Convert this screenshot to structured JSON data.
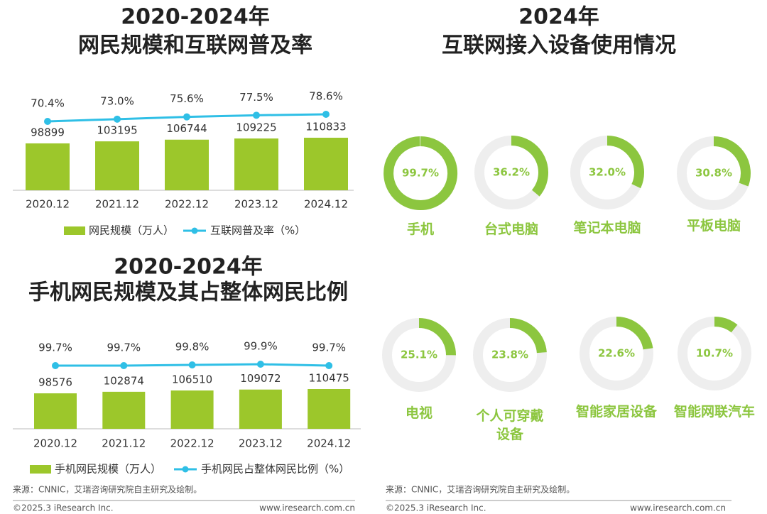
{
  "chart_data": [
    {
      "type": "bar",
      "title_lines": [
        "2020-2024年",
        "网民规模和互联网普及率"
      ],
      "categories": [
        "2020.12",
        "2021.12",
        "2022.12",
        "2023.12",
        "2024.12"
      ],
      "series": [
        {
          "name": "网民规模（万人）",
          "type": "bar",
          "color": "#9cc72b",
          "values": [
            98899,
            103195,
            106744,
            109225,
            110833
          ]
        },
        {
          "name": "互联网普及率（%）",
          "type": "line",
          "axis": "y2",
          "color": "#2fbfe6",
          "values": [
            70.4,
            73.0,
            75.6,
            77.5,
            78.6
          ],
          "value_labels": [
            "70.4%",
            "73.0%",
            "75.6%",
            "77.5%",
            "78.6%"
          ]
        }
      ],
      "legend": "bottom"
    },
    {
      "type": "bar",
      "title_lines": [
        "2020-2024年",
        "手机网民规模及其占整体网民比例"
      ],
      "categories": [
        "2020.12",
        "2021.12",
        "2022.12",
        "2023.12",
        "2024.12"
      ],
      "series": [
        {
          "name": "手机网民规模（万人）",
          "type": "bar",
          "color": "#9cc72b",
          "values": [
            98576,
            102874,
            106510,
            109072,
            110475
          ]
        },
        {
          "name": "手机网民占整体网民比例（%）",
          "type": "line",
          "axis": "y2",
          "color": "#2fbfe6",
          "values": [
            99.7,
            99.7,
            99.8,
            99.9,
            99.7
          ],
          "value_labels": [
            "99.7%",
            "99.7%",
            "99.8%",
            "99.9%",
            "99.7%"
          ]
        }
      ],
      "legend": "bottom"
    },
    {
      "type": "donut",
      "title_lines": [
        "2024年",
        "互联网接入设备使用情况"
      ],
      "categories": [
        "手机",
        "台式电脑",
        "笔记本电脑",
        "平板电脑",
        "电视",
        "个人可穿戴\n设备",
        "智能家居设备",
        "智能网联汽车"
      ],
      "values": [
        99.7,
        36.2,
        32.0,
        30.8,
        25.1,
        23.8,
        22.6,
        10.7
      ],
      "value_labels": [
        "99.7%",
        "36.2%",
        "32.0%",
        "30.8%",
        "25.1%",
        "23.8%",
        "22.6%",
        "10.7%"
      ],
      "color": "#8cc63f",
      "track_color": "#eeeeee"
    }
  ],
  "footer": {
    "source": "来源：CNNIC，艾瑞咨询研究院自主研究及绘制。",
    "copyright": "©2025.3 iResearch Inc.",
    "website": "www.iresearch.com.cn"
  }
}
